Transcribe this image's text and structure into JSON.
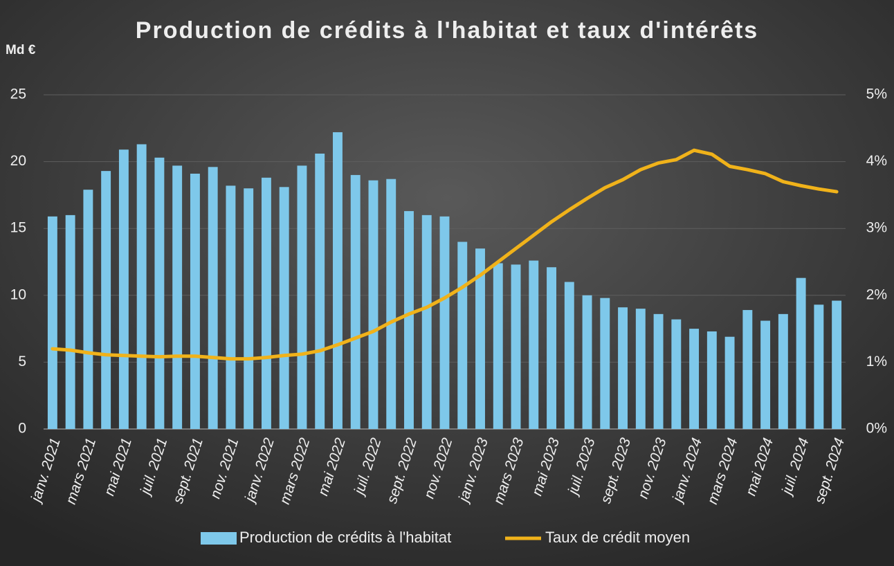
{
  "chart_data": {
    "type": "bar-line",
    "title": "Production de crédits à l'habitat et taux d'intérêts",
    "y_axis_label": "Md €",
    "categories": [
      "janv. 2021",
      null,
      "mars 2021",
      null,
      "mai 2021",
      null,
      "juil. 2021",
      null,
      "sept. 2021",
      null,
      "nov. 2021",
      null,
      "janv. 2022",
      null,
      "mars 2022",
      null,
      "mai 2022",
      null,
      "juil. 2022",
      null,
      "sept. 2022",
      null,
      "nov. 2022",
      null,
      "janv. 2023",
      null,
      "mars 2023",
      null,
      "mai 2023",
      null,
      "juil. 2023",
      null,
      "sept. 2023",
      null,
      "nov. 2023",
      null,
      "janv. 2024",
      null,
      "mars 2024",
      null,
      "mai 2024",
      null,
      "juil. 2024",
      null,
      "sept. 2024"
    ],
    "series": [
      {
        "name": "Production de crédits à l'habitat",
        "color": "#7ec8ea",
        "type": "bar",
        "axis": "y",
        "values": [
          15.9,
          16.0,
          17.9,
          19.3,
          20.9,
          21.3,
          20.3,
          19.7,
          19.1,
          19.6,
          18.2,
          18.0,
          18.8,
          18.1,
          19.7,
          20.6,
          22.2,
          19.0,
          18.6,
          18.7,
          16.3,
          16.0,
          15.9,
          14.0,
          13.5,
          12.4,
          12.3,
          12.6,
          12.1,
          11.0,
          10.0,
          9.8,
          9.1,
          9.0,
          8.6,
          8.2,
          7.5,
          7.3,
          6.9,
          8.9,
          8.1,
          8.6,
          11.3,
          9.3,
          9.6
        ]
      },
      {
        "name": "Taux de crédit moyen",
        "color": "#f0b21a",
        "type": "line",
        "axis": "y2",
        "values": [
          1.2,
          1.18,
          1.14,
          1.11,
          1.1,
          1.09,
          1.08,
          1.09,
          1.09,
          1.07,
          1.05,
          1.05,
          1.07,
          1.1,
          1.12,
          1.17,
          1.26,
          1.36,
          1.46,
          1.6,
          1.72,
          1.82,
          1.96,
          2.12,
          2.3,
          2.5,
          2.7,
          2.9,
          3.1,
          3.28,
          3.45,
          3.61,
          3.73,
          3.88,
          3.98,
          4.03,
          4.17,
          4.11,
          3.93,
          3.88,
          3.82,
          3.7,
          3.64,
          3.59,
          3.55
        ]
      }
    ],
    "ylim": [
      0,
      25
    ],
    "yticks": [
      0,
      5,
      10,
      15,
      20,
      25
    ],
    "y2lim": [
      0,
      5
    ],
    "y2ticks": [
      {
        "value": 0,
        "label": "0%"
      },
      {
        "value": 1,
        "label": "1%"
      },
      {
        "value": 2,
        "label": "2%"
      },
      {
        "value": 3,
        "label": "3%"
      },
      {
        "value": 4,
        "label": "4%"
      },
      {
        "value": 5,
        "label": "5%"
      }
    ],
    "grid": true,
    "legend": "bottom"
  }
}
